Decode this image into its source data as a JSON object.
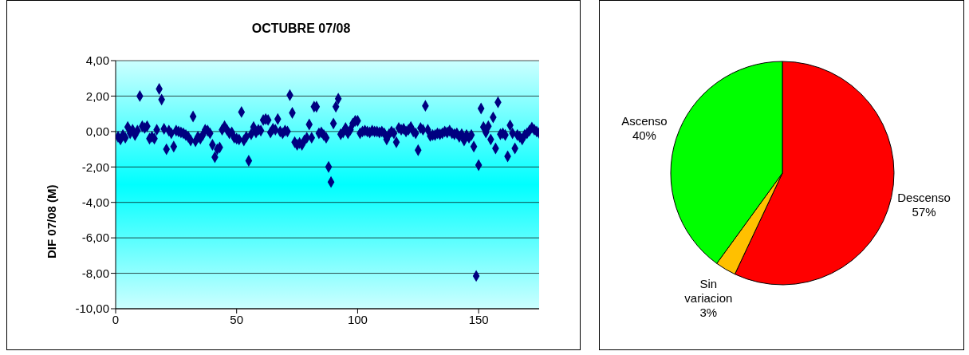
{
  "chart_data": [
    {
      "type": "scatter",
      "title": "OCTUBRE 07/08",
      "ylabel": "DIF 07/08 (M)",
      "x": [
        1,
        2,
        3,
        4,
        5,
        6,
        7,
        8,
        9,
        10,
        11,
        12,
        13,
        14,
        15,
        16,
        17,
        18,
        19,
        20,
        21,
        22,
        23,
        24,
        25,
        26,
        27,
        28,
        29,
        30,
        31,
        32,
        33,
        34,
        35,
        36,
        37,
        38,
        39,
        40,
        41,
        42,
        43,
        44,
        45,
        46,
        47,
        48,
        49,
        50,
        51,
        52,
        53,
        54,
        55,
        56,
        57,
        58,
        59,
        60,
        61,
        62,
        63,
        64,
        65,
        66,
        67,
        68,
        69,
        70,
        71,
        72,
        73,
        74,
        75,
        76,
        77,
        78,
        79,
        80,
        81,
        82,
        83,
        84,
        85,
        86,
        87,
        88,
        89,
        90,
        91,
        92,
        93,
        94,
        95,
        96,
        97,
        98,
        99,
        100,
        101,
        102,
        103,
        104,
        105,
        106,
        107,
        108,
        109,
        110,
        111,
        112,
        113,
        114,
        115,
        116,
        117,
        118,
        119,
        120,
        121,
        122,
        123,
        124,
        125,
        126,
        127,
        128,
        129,
        130,
        131,
        132,
        133,
        134,
        135,
        136,
        137,
        138,
        139,
        140,
        141,
        142,
        143,
        144,
        145,
        146,
        147,
        148,
        149,
        150,
        151,
        152,
        153,
        154,
        155,
        156,
        157,
        158,
        159,
        160,
        161,
        162,
        163,
        164,
        165,
        166,
        167,
        168,
        169,
        170,
        171,
        172,
        173,
        174,
        175
      ],
      "values": [
        -0.3,
        -0.45,
        -0.2,
        -0.35,
        0.25,
        -0.1,
        0.1,
        -0.2,
        0.05,
        2.0,
        0.3,
        0.2,
        0.3,
        -0.4,
        -0.3,
        -0.4,
        0.1,
        2.4,
        1.8,
        0.15,
        -1.0,
        0.05,
        -0.1,
        -0.85,
        0.05,
        0.0,
        -0.05,
        -0.1,
        -0.2,
        -0.3,
        -0.5,
        0.85,
        -0.55,
        -0.3,
        -0.4,
        -0.2,
        0.1,
        0.05,
        -0.1,
        -0.75,
        -1.45,
        -1.0,
        -0.9,
        0.1,
        0.3,
        0.1,
        -0.1,
        -0.05,
        -0.35,
        -0.4,
        -0.45,
        1.1,
        -0.5,
        -0.3,
        -1.65,
        -0.15,
        0.25,
        -0.05,
        0.1,
        0.05,
        0.65,
        0.7,
        0.65,
        -0.05,
        0.15,
        0.1,
        0.7,
        0.0,
        -0.1,
        0.05,
        0.0,
        2.05,
        1.05,
        -0.6,
        -0.75,
        -0.65,
        -0.75,
        -0.5,
        -0.35,
        0.4,
        -0.35,
        1.4,
        1.4,
        -0.1,
        -0.05,
        -0.2,
        -0.35,
        -2.0,
        -2.85,
        0.45,
        1.4,
        1.85,
        -0.15,
        -0.05,
        0.2,
        -0.1,
        0.1,
        0.45,
        0.6,
        0.6,
        -0.1,
        0.0,
        0.05,
        0.0,
        -0.05,
        0.05,
        0.0,
        0.0,
        -0.05,
        0.0,
        -0.1,
        -0.45,
        -0.15,
        0.0,
        -0.1,
        -0.6,
        0.2,
        0.1,
        0.15,
        0.0,
        0.1,
        0.25,
        0.0,
        -0.1,
        -1.05,
        0.2,
        0.1,
        1.45,
        0.1,
        -0.25,
        -0.2,
        -0.2,
        -0.1,
        -0.15,
        -0.1,
        0.0,
        -0.05,
        0.05,
        -0.1,
        -0.15,
        -0.1,
        -0.3,
        -0.15,
        -0.5,
        -0.2,
        -0.35,
        -0.2,
        -0.85,
        -8.15,
        -1.9,
        1.3,
        0.25,
        -0.05,
        0.3,
        -0.45,
        0.8,
        -0.95,
        1.65,
        -0.15,
        -0.1,
        -0.2,
        -1.4,
        0.35,
        -0.1,
        -0.95,
        -0.2,
        -0.3,
        -0.45,
        -0.2,
        -0.1,
        0.05,
        0.22,
        0.1,
        0.0,
        -0.08
      ],
      "color": "#000080",
      "marker": "diamond",
      "xlim": [
        0,
        175
      ],
      "xticks": [
        0,
        50,
        100,
        150
      ],
      "ylim": [
        -10,
        4
      ],
      "yticks": [
        {
          "value": -10,
          "label": "-10,00"
        },
        {
          "value": -8,
          "label": "-8,00"
        },
        {
          "value": -6,
          "label": "-6,00"
        },
        {
          "value": -4,
          "label": "-4,00"
        },
        {
          "value": -2,
          "label": "-2,00"
        },
        {
          "value": 0,
          "label": "0,00"
        },
        {
          "value": 2,
          "label": "2,00"
        },
        {
          "value": 4,
          "label": "4,00"
        }
      ],
      "grid": "y",
      "legend": false
    },
    {
      "type": "pie",
      "categories": [
        "Descenso",
        "Sin variacion",
        "Ascenso"
      ],
      "values": [
        57,
        3,
        40
      ],
      "colors": [
        "#ff0000",
        "#ffc000",
        "#00ff00"
      ],
      "value_labels": [
        "57%",
        "3%",
        "40%"
      ],
      "legend": false
    }
  ]
}
